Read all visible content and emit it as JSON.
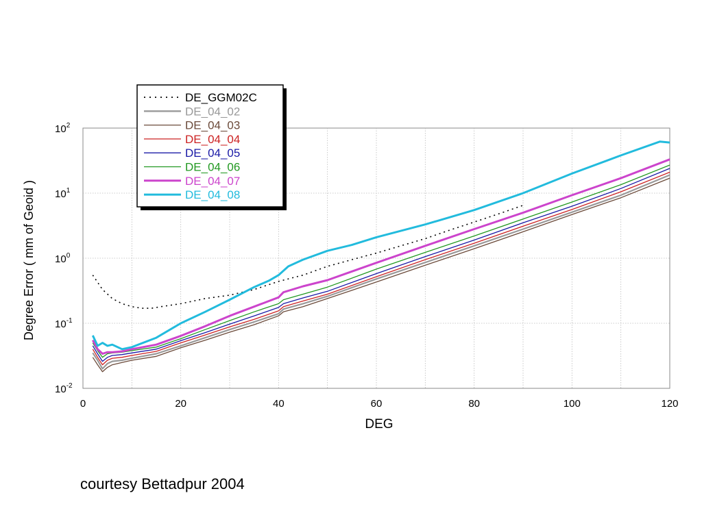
{
  "caption": "courtesy Bettadpur 2004",
  "chart_data": {
    "type": "line",
    "xlabel": "DEG",
    "ylabel": "Degree Error ( mm of Geoid )",
    "xlim": [
      0,
      120
    ],
    "ylim": [
      0.01,
      100
    ],
    "yscale": "log",
    "grid": true,
    "legend_position": "top-left",
    "x_ticks": [
      "0",
      "20",
      "40",
      "60",
      "80",
      "100",
      "120"
    ],
    "y_ticks": [
      {
        "base": "10",
        "exp": "2",
        "value": 100
      },
      {
        "base": "10",
        "exp": "1",
        "value": 10
      },
      {
        "base": "10",
        "exp": "0",
        "value": 1
      },
      {
        "base": "10",
        "exp": "-1",
        "value": 0.1
      },
      {
        "base": "10",
        "exp": "-2",
        "value": 0.01
      }
    ],
    "series": [
      {
        "name": "DE_GGM02C",
        "color": "#000000",
        "style": "dotted",
        "x": [
          2,
          4,
          6,
          8,
          10,
          12,
          14,
          16,
          20,
          25,
          30,
          35,
          40,
          45,
          50,
          55,
          60,
          65,
          70,
          75,
          80,
          85,
          90
        ],
        "y": [
          0.55,
          0.33,
          0.24,
          0.2,
          0.18,
          0.17,
          0.17,
          0.18,
          0.2,
          0.24,
          0.27,
          0.33,
          0.44,
          0.55,
          0.75,
          0.95,
          1.2,
          1.55,
          2.0,
          2.7,
          3.6,
          4.8,
          6.5
        ]
      },
      {
        "name": "DE_04_02",
        "color": "#999999",
        "style": "solid",
        "x": [
          2,
          3,
          4,
          5,
          6,
          8,
          10,
          15,
          20,
          25,
          30,
          35,
          40,
          41,
          45,
          50,
          60,
          70,
          80,
          90,
          100,
          110,
          120
        ],
        "y": [
          0.035,
          0.027,
          0.02,
          0.024,
          0.026,
          0.027,
          0.029,
          0.034,
          0.045,
          0.06,
          0.08,
          0.105,
          0.14,
          0.165,
          0.2,
          0.26,
          0.48,
          0.86,
          1.55,
          2.8,
          5.1,
          9.3,
          19
        ]
      },
      {
        "name": "DE_04_03",
        "color": "#6b4a3a",
        "style": "solid",
        "x": [
          2,
          3,
          4,
          5,
          6,
          8,
          10,
          15,
          20,
          25,
          30,
          35,
          40,
          41,
          45,
          50,
          60,
          70,
          80,
          90,
          100,
          110,
          120
        ],
        "y": [
          0.03,
          0.023,
          0.018,
          0.021,
          0.023,
          0.025,
          0.027,
          0.031,
          0.042,
          0.055,
          0.073,
          0.095,
          0.13,
          0.15,
          0.18,
          0.24,
          0.43,
          0.78,
          1.4,
          2.55,
          4.7,
          8.5,
          17
        ]
      },
      {
        "name": "DE_04_04",
        "color": "#cc2222",
        "style": "solid",
        "x": [
          2,
          3,
          4,
          5,
          6,
          8,
          10,
          15,
          20,
          25,
          30,
          35,
          40,
          41,
          45,
          50,
          60,
          70,
          80,
          90,
          100,
          110,
          120
        ],
        "y": [
          0.04,
          0.03,
          0.023,
          0.027,
          0.029,
          0.03,
          0.032,
          0.037,
          0.05,
          0.066,
          0.088,
          0.115,
          0.155,
          0.18,
          0.22,
          0.28,
          0.52,
          0.95,
          1.7,
          3.1,
          5.6,
          10.5,
          21
        ]
      },
      {
        "name": "DE_04_05",
        "color": "#1a1aa6",
        "style": "solid",
        "x": [
          2,
          3,
          4,
          5,
          6,
          8,
          10,
          15,
          20,
          25,
          30,
          35,
          40,
          41,
          45,
          50,
          60,
          70,
          80,
          90,
          100,
          110,
          120
        ],
        "y": [
          0.045,
          0.034,
          0.026,
          0.03,
          0.032,
          0.033,
          0.035,
          0.04,
          0.054,
          0.072,
          0.097,
          0.13,
          0.175,
          0.2,
          0.245,
          0.31,
          0.58,
          1.06,
          1.9,
          3.5,
          6.3,
          11.8,
          24
        ]
      },
      {
        "name": "DE_04_06",
        "color": "#229922",
        "style": "solid",
        "x": [
          2,
          3,
          4,
          5,
          6,
          8,
          10,
          15,
          20,
          25,
          30,
          35,
          40,
          41,
          45,
          50,
          60,
          70,
          80,
          90,
          100,
          110,
          120
        ],
        "y": [
          0.05,
          0.038,
          0.03,
          0.034,
          0.035,
          0.036,
          0.038,
          0.043,
          0.058,
          0.08,
          0.11,
          0.15,
          0.2,
          0.23,
          0.28,
          0.36,
          0.68,
          1.23,
          2.2,
          4.0,
          7.3,
          13.5,
          27
        ]
      },
      {
        "name": "DE_04_07",
        "color": "#cc44cc",
        "style": "solid",
        "x": [
          2,
          3,
          4,
          5,
          6,
          8,
          10,
          15,
          20,
          25,
          30,
          35,
          40,
          41,
          45,
          50,
          60,
          70,
          80,
          90,
          100,
          110,
          120
        ],
        "y": [
          0.055,
          0.04,
          0.034,
          0.036,
          0.036,
          0.037,
          0.04,
          0.047,
          0.064,
          0.09,
          0.13,
          0.18,
          0.25,
          0.3,
          0.37,
          0.46,
          0.85,
          1.55,
          2.8,
          5.0,
          9.3,
          17,
          33
        ]
      },
      {
        "name": "DE_04_08",
        "color": "#22bbdd",
        "style": "solid",
        "x": [
          2,
          3,
          4,
          5,
          6,
          8,
          10,
          15,
          20,
          25,
          30,
          35,
          38,
          40,
          42,
          45,
          50,
          55,
          60,
          70,
          80,
          90,
          100,
          110,
          118,
          120
        ],
        "y": [
          0.065,
          0.045,
          0.05,
          0.045,
          0.047,
          0.04,
          0.043,
          0.06,
          0.1,
          0.15,
          0.23,
          0.36,
          0.45,
          0.55,
          0.75,
          0.95,
          1.3,
          1.6,
          2.1,
          3.3,
          5.5,
          10,
          20,
          38,
          62,
          60
        ]
      }
    ]
  }
}
